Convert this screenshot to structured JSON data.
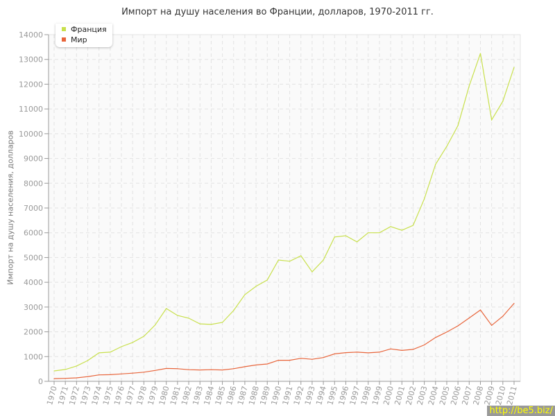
{
  "chart_data": {
    "type": "line",
    "title": "Импорт на душу населения во Франции, долларов, 1970-2011 гг.",
    "xlabel": "",
    "ylabel": "Импорт на душу населения, долларов",
    "ylim": [
      0,
      14000
    ],
    "yticks": [
      0,
      1000,
      2000,
      3000,
      4000,
      5000,
      6000,
      7000,
      8000,
      9000,
      10000,
      11000,
      12000,
      13000,
      14000
    ],
    "grid": true,
    "legend_position": "top-left",
    "x": [
      1970,
      1971,
      1972,
      1973,
      1974,
      1975,
      1976,
      1977,
      1978,
      1979,
      1980,
      1981,
      1982,
      1983,
      1984,
      1985,
      1986,
      1987,
      1988,
      1989,
      1990,
      1991,
      1992,
      1993,
      1994,
      1995,
      1996,
      1997,
      1998,
      1999,
      2000,
      2001,
      2002,
      2003,
      2004,
      2005,
      2006,
      2007,
      2008,
      2009,
      2010,
      2011
    ],
    "series": [
      {
        "name": "Франция",
        "color": "#c8e04c",
        "values": [
          420,
          480,
          620,
          840,
          1150,
          1180,
          1400,
          1570,
          1820,
          2270,
          2940,
          2660,
          2550,
          2320,
          2300,
          2380,
          2860,
          3500,
          3840,
          4090,
          4900,
          4850,
          5070,
          4420,
          4900,
          5830,
          5880,
          5630,
          6000,
          6000,
          6250,
          6100,
          6300,
          7370,
          8760,
          9490,
          10330,
          11930,
          13240,
          10560,
          11310,
          12680
        ]
      },
      {
        "name": "Мир",
        "color": "#e8643a",
        "values": [
          110,
          120,
          140,
          190,
          260,
          270,
          300,
          330,
          370,
          440,
          520,
          510,
          470,
          460,
          470,
          460,
          510,
          590,
          660,
          700,
          850,
          850,
          930,
          890,
          960,
          1110,
          1160,
          1180,
          1150,
          1180,
          1310,
          1250,
          1290,
          1470,
          1770,
          1990,
          2240,
          2560,
          2880,
          2260,
          2630,
          3150
        ]
      }
    ]
  },
  "watermark": "http://be5.biz/"
}
